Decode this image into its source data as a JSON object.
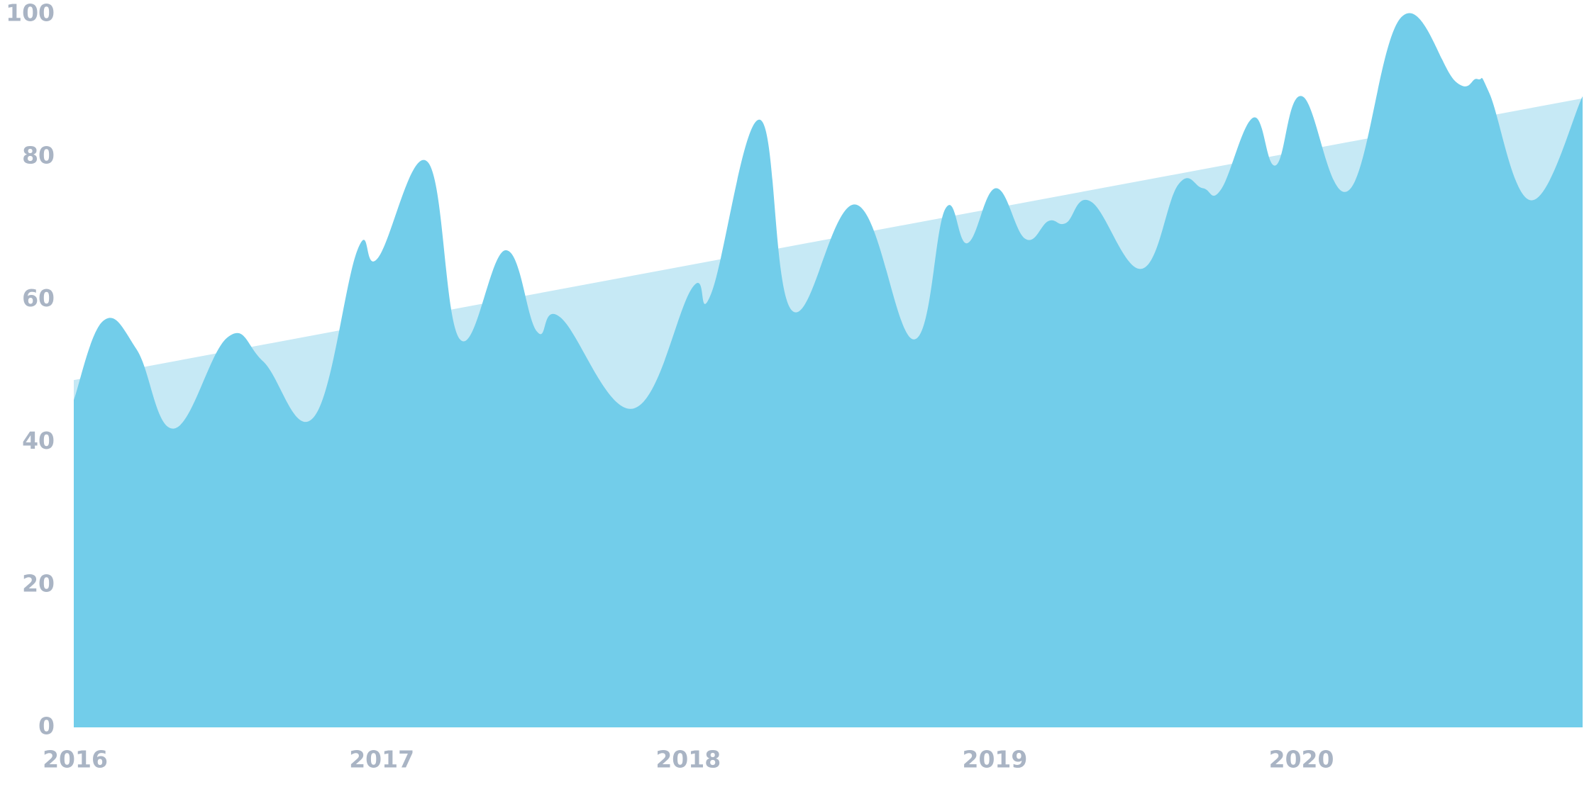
{
  "chart_data": {
    "type": "area",
    "x": [
      2016,
      2016.096,
      2016.205,
      2016.327,
      2016.502,
      2016.618,
      2016.783,
      2016.926,
      2016.992,
      2017.154,
      2017.26,
      2017.408,
      2017.511,
      2017.587,
      2017.825,
      2018.017,
      2018.079,
      2018.238,
      2018.344,
      2018.552,
      2018.74,
      2018.843,
      2018.916,
      2019.008,
      2019.104,
      2019.18,
      2019.236,
      2019.319,
      2019.484,
      2019.603,
      2019.683,
      2019.742,
      2019.848,
      2019.921,
      2020.007,
      2020.159,
      2020.331,
      2020.509,
      2020.579,
      2020.618,
      2020.755,
      2020.922
    ],
    "values": [
      45.9,
      57,
      53,
      41.9,
      54.7,
      51.3,
      43.5,
      67,
      65.8,
      79.3,
      54.4,
      66.9,
      55.5,
      57.5,
      44.7,
      61.6,
      60.8,
      85.2,
      58.4,
      73.3,
      54.4,
      72.7,
      67.9,
      75.6,
      68.5,
      71,
      70.7,
      73.7,
      64.3,
      76.1,
      75.6,
      75.4,
      85.5,
      78.8,
      88.5,
      75.3,
      99.6,
      90.5,
      90.9,
      88.9,
      73.9,
      88.5
    ],
    "color": "#72cdea",
    "trend": {
      "x": [
        2016,
        2020.922
      ],
      "values": [
        48.7,
        88.2
      ],
      "color": "#c6e9f5"
    },
    "xlim": [
      2016,
      2020.922
    ],
    "xticks": [
      2016,
      2017,
      2018,
      2019,
      2020
    ],
    "ylim": [
      0,
      100
    ],
    "yticks": [
      0,
      20,
      40,
      60,
      80,
      100
    ],
    "grid": false
  }
}
